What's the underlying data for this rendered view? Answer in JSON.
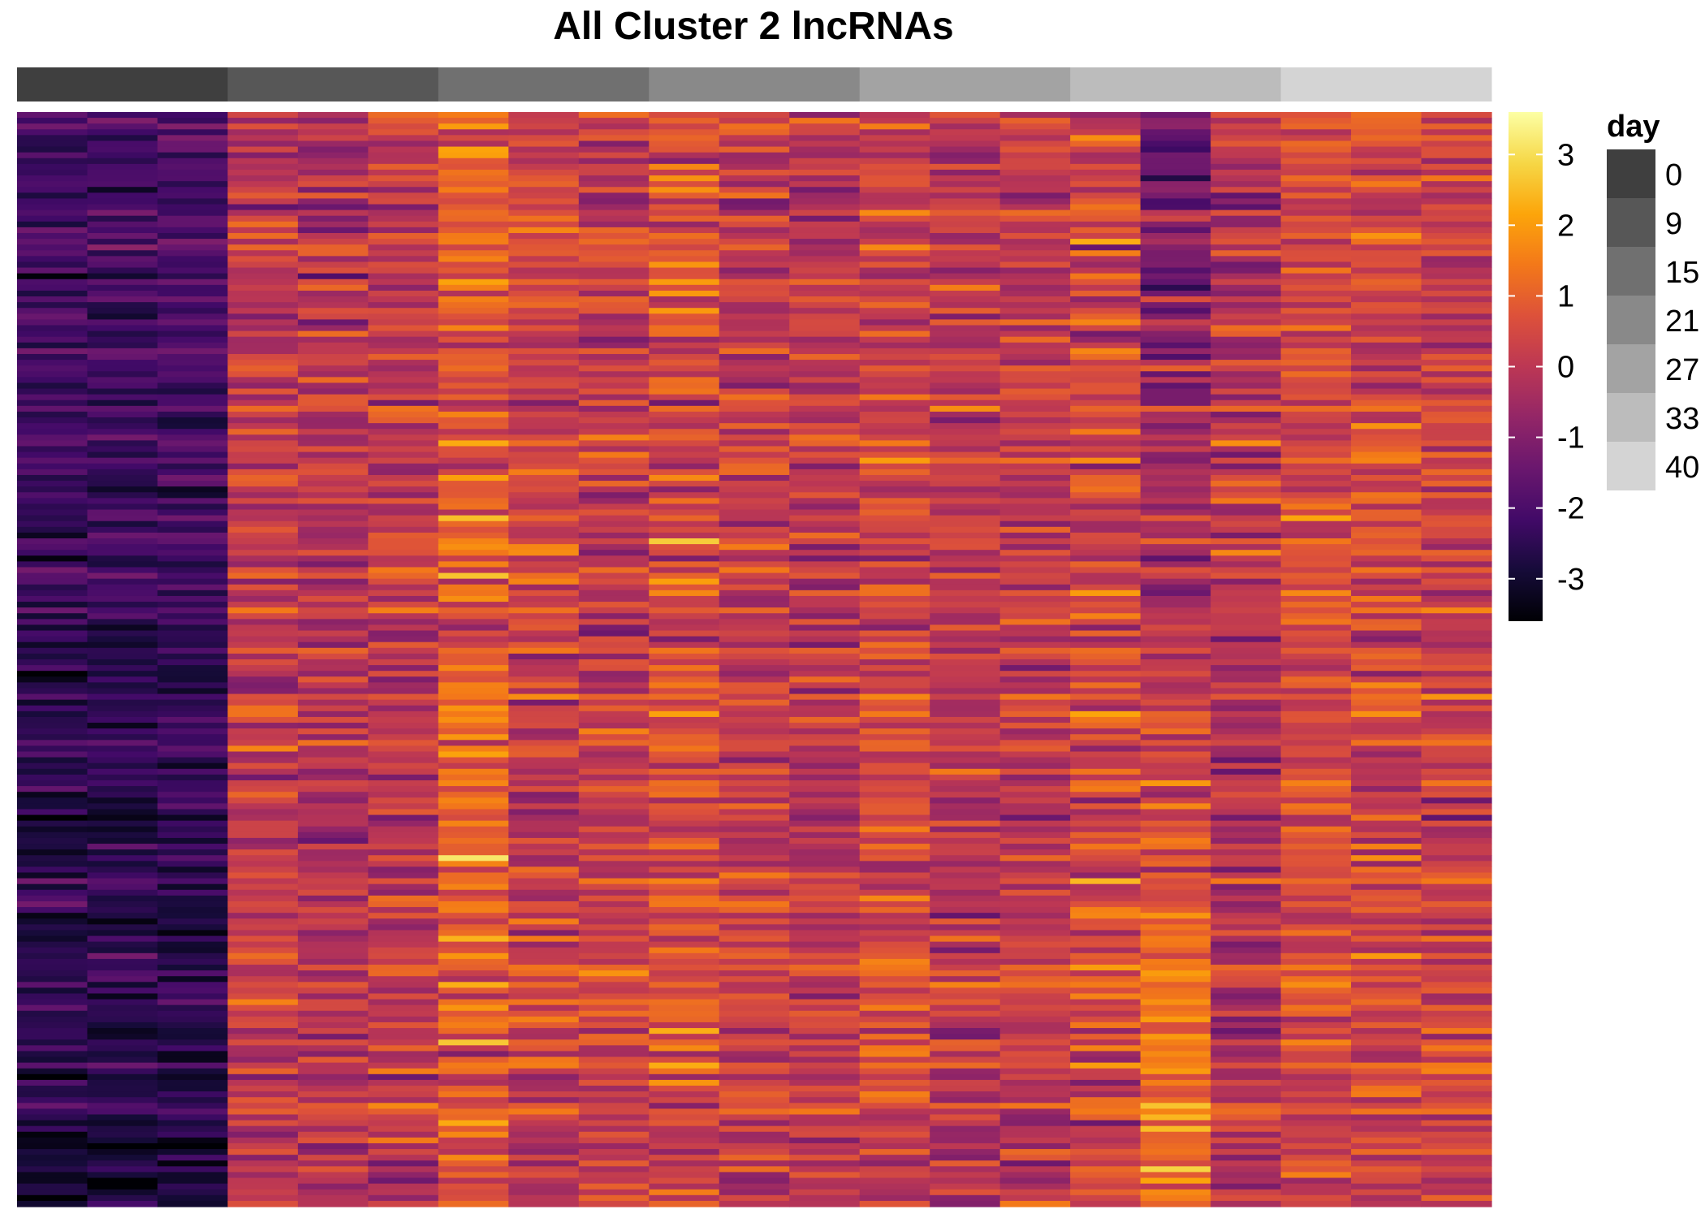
{
  "chart_data": {
    "type": "heatmap",
    "title": "All Cluster 2 lncRNAs",
    "columns": 21,
    "rows": 190,
    "column_annotation": {
      "name": "day",
      "title": "day",
      "groups": [
        {
          "label": "0",
          "color": "#3f3f3f",
          "columns": 3
        },
        {
          "label": "9",
          "color": "#575757",
          "columns": 3
        },
        {
          "label": "15",
          "color": "#707070",
          "columns": 3
        },
        {
          "label": "21",
          "color": "#898989",
          "columns": 3
        },
        {
          "label": "27",
          "color": "#a3a3a3",
          "columns": 3
        },
        {
          "label": "33",
          "color": "#bcbcbc",
          "columns": 3
        },
        {
          "label": "40",
          "color": "#d4d4d4",
          "columns": 3
        }
      ]
    },
    "colorbar": {
      "palette": "inferno",
      "range": [
        -3.6,
        3.6
      ],
      "ticks": [
        3,
        2,
        1,
        0,
        -1,
        -2,
        -3
      ],
      "tick_labels": [
        "3",
        "2",
        "1",
        "0",
        "-1",
        "-2",
        "-3"
      ]
    },
    "column_means": [
      -2.3,
      -2.3,
      -2.3,
      0.1,
      -0.05,
      0.05,
      0.95,
      0.35,
      0.15,
      0.55,
      0.2,
      0.0,
      0.45,
      0.05,
      0.1,
      0.4,
      0.15,
      -0.1,
      0.55,
      0.45,
      0.3
    ],
    "column_spread": [
      0.4,
      0.4,
      0.4,
      0.6,
      0.6,
      0.6,
      0.7,
      0.6,
      0.6,
      0.7,
      0.6,
      0.6,
      0.6,
      0.6,
      0.6,
      0.7,
      0.6,
      0.6,
      0.6,
      0.6,
      0.6
    ],
    "value_summary": {
      "day_0": "mostly -3 to -1.5",
      "day_9_to_40": "mostly -1 to 2",
      "column_16": "lower in upper rows (about -1.5), higher in lower rows (about 2)"
    },
    "legend_position": "right"
  }
}
